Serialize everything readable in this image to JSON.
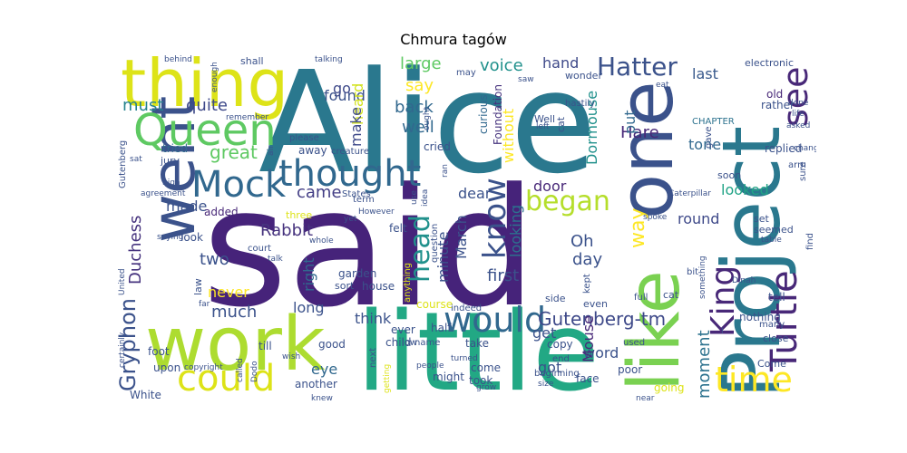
{
  "title": "Chmura tagów",
  "palette": {
    "background": "#ffffff",
    "dark_purple": "#46237a",
    "blue": "#3b528b",
    "teal": "#21918c",
    "green": "#5ec962",
    "yellow": "#dde318"
  },
  "words": [
    {
      "text": "said",
      "color": "#46237a"
    },
    {
      "text": "Alice",
      "color": "#2a788e"
    },
    {
      "text": "little",
      "color": "#22a884"
    },
    {
      "text": "work",
      "color": "#addc30"
    },
    {
      "text": "thing",
      "color": "#dde318"
    },
    {
      "text": "went",
      "color": "#3b528b"
    },
    {
      "text": "one",
      "color": "#3b528b"
    },
    {
      "text": "like",
      "color": "#7ad151"
    },
    {
      "text": "Project",
      "color": "#2a788e"
    },
    {
      "text": "Queen",
      "color": "#5ec962"
    },
    {
      "text": "thought",
      "color": "#31688e"
    },
    {
      "text": "Mock",
      "color": "#31688e"
    },
    {
      "text": "could",
      "color": "#dde318"
    },
    {
      "text": "would",
      "color": "#31688e"
    },
    {
      "text": "time",
      "color": "#fde725"
    },
    {
      "text": "Turtle",
      "color": "#482878"
    },
    {
      "text": "see",
      "color": "#482878"
    },
    {
      "text": "King",
      "color": "#482878"
    },
    {
      "text": "know",
      "color": "#3b528b"
    },
    {
      "text": "head",
      "color": "#21918c"
    },
    {
      "text": "began",
      "color": "#b5de2b"
    },
    {
      "text": "Hatter",
      "color": "#3b528b"
    },
    {
      "text": "Gryphon",
      "color": "#3b528b"
    },
    {
      "text": "Duchess",
      "color": "#46337e"
    },
    {
      "text": "Gutenberg-tm",
      "color": "#3e4989"
    },
    {
      "text": "moment",
      "color": "#2c728e"
    },
    {
      "text": "voice",
      "color": "#21918c"
    },
    {
      "text": "quite",
      "color": "#3e4989"
    },
    {
      "text": "must",
      "color": "#26828e"
    },
    {
      "text": "great",
      "color": "#5ec962"
    },
    {
      "text": "much",
      "color": "#3b528b"
    },
    {
      "text": "two",
      "color": "#3b528b"
    },
    {
      "text": "never",
      "color": "#fde725"
    },
    {
      "text": "made",
      "color": "#3b528b"
    },
    {
      "text": "Rabbit",
      "color": "#46337e"
    },
    {
      "text": "came",
      "color": "#433e85"
    },
    {
      "text": "found",
      "color": "#3b528b"
    },
    {
      "text": "go",
      "color": "#3e4989"
    },
    {
      "text": "heard",
      "color": "#d2e21b"
    },
    {
      "text": "large",
      "color": "#5ec962"
    },
    {
      "text": "say",
      "color": "#fde725"
    },
    {
      "text": "back",
      "color": "#31688e"
    },
    {
      "text": "well",
      "color": "#31688e"
    },
    {
      "text": "make",
      "color": "#3e4989"
    },
    {
      "text": "without",
      "color": "#fde725"
    },
    {
      "text": "hand",
      "color": "#3e4989"
    },
    {
      "text": "last",
      "color": "#38598c"
    },
    {
      "text": "Dormouse",
      "color": "#21918c"
    },
    {
      "text": "Hare",
      "color": "#482878"
    },
    {
      "text": "way",
      "color": "#fde725"
    },
    {
      "text": "put",
      "color": "#31688e"
    },
    {
      "text": "door",
      "color": "#482878"
    },
    {
      "text": "dear",
      "color": "#3b528b"
    },
    {
      "text": "minute",
      "color": "#3b528b"
    },
    {
      "text": "March",
      "color": "#3b528b"
    },
    {
      "text": "looking",
      "color": "#2c728e"
    },
    {
      "text": "Oh",
      "color": "#3b528b"
    },
    {
      "text": "day",
      "color": "#3b528b"
    },
    {
      "text": "first",
      "color": "#3b528b"
    },
    {
      "text": "round",
      "color": "#3e4989"
    },
    {
      "text": "looked",
      "color": "#20a386"
    },
    {
      "text": "tone",
      "color": "#31688e"
    },
    {
      "text": "right",
      "color": "#31688e"
    },
    {
      "text": "long",
      "color": "#3b528b"
    },
    {
      "text": "think",
      "color": "#3b528b"
    },
    {
      "text": "get",
      "color": "#3b528b"
    },
    {
      "text": "word",
      "color": "#3b528b"
    },
    {
      "text": "Mouse",
      "color": "#482878"
    },
    {
      "text": "got",
      "color": "#3b528b"
    },
    {
      "text": "eye",
      "color": "#31688e"
    },
    {
      "text": "first",
      "color": "#3b528b"
    },
    {
      "text": "curious",
      "color": "#31688e"
    },
    {
      "text": "Foundation",
      "color": "#46337e"
    },
    {
      "text": "added",
      "color": "#482878"
    },
    {
      "text": "tried",
      "color": "#31688e"
    },
    {
      "text": "Gutenberg",
      "color": "#3b528b"
    },
    {
      "text": "away",
      "color": "#3b528b"
    },
    {
      "text": "cried",
      "color": "#3b528b"
    },
    {
      "text": "replied",
      "color": "#3b528b"
    },
    {
      "text": "old",
      "color": "#482878"
    },
    {
      "text": "rather",
      "color": "#3b528b"
    },
    {
      "text": "CHAPTER",
      "color": "#2c728e"
    },
    {
      "text": "electronic",
      "color": "#3b528b"
    },
    {
      "text": "wonder",
      "color": "#3b528b"
    },
    {
      "text": "hastily",
      "color": "#3b528b"
    },
    {
      "text": "soon",
      "color": "#3b528b"
    },
    {
      "text": "arm",
      "color": "#3b528b"
    },
    {
      "text": "sure",
      "color": "#3b528b"
    },
    {
      "text": "set",
      "color": "#3b528b"
    },
    {
      "text": "seemed",
      "color": "#3b528b"
    },
    {
      "text": "table",
      "color": "#3b528b"
    },
    {
      "text": "find",
      "color": "#3b528b"
    },
    {
      "text": "tell",
      "color": "#3b528b"
    },
    {
      "text": "nothing",
      "color": "#3b528b"
    },
    {
      "text": "close",
      "color": "#3b528b"
    },
    {
      "text": "many",
      "color": "#3b528b"
    },
    {
      "text": "Come",
      "color": "#3b528b"
    },
    {
      "text": "cat",
      "color": "#3b528b"
    },
    {
      "text": "bit",
      "color": "#3b528b"
    },
    {
      "text": "full",
      "color": "#3b528b"
    },
    {
      "text": "used",
      "color": "#3b528b"
    },
    {
      "text": "going",
      "color": "#dde318"
    },
    {
      "text": "near",
      "color": "#3b528b"
    },
    {
      "text": "poor",
      "color": "#3b528b"
    },
    {
      "text": "face",
      "color": "#3b528b"
    },
    {
      "text": "even",
      "color": "#3b528b"
    },
    {
      "text": "side",
      "color": "#3b528b"
    },
    {
      "text": "copy",
      "color": "#3b528b"
    },
    {
      "text": "course",
      "color": "#dde318"
    },
    {
      "text": "indeed",
      "color": "#3b528b"
    },
    {
      "text": "half",
      "color": "#3b528b"
    },
    {
      "text": "ever",
      "color": "#3b528b"
    },
    {
      "text": "child",
      "color": "#3b528b"
    },
    {
      "text": "low",
      "color": "#3b528b"
    },
    {
      "text": "name",
      "color": "#3b528b"
    },
    {
      "text": "take",
      "color": "#3b528b"
    },
    {
      "text": "come",
      "color": "#3b528b"
    },
    {
      "text": "took",
      "color": "#3b528b"
    },
    {
      "text": "might",
      "color": "#3b528b"
    },
    {
      "text": "next",
      "color": "#3b528b"
    },
    {
      "text": "people",
      "color": "#3b528b"
    },
    {
      "text": "turned",
      "color": "#3b528b"
    },
    {
      "text": "grow",
      "color": "#3b528b"
    },
    {
      "text": "size",
      "color": "#3b528b"
    },
    {
      "text": "another",
      "color": "#3b528b"
    },
    {
      "text": "knew",
      "color": "#3b528b"
    },
    {
      "text": "getting",
      "color": "#dde318"
    },
    {
      "text": "house",
      "color": "#3b528b"
    },
    {
      "text": "good",
      "color": "#3b528b"
    },
    {
      "text": "till",
      "color": "#3b528b"
    },
    {
      "text": "upon",
      "color": "#3b528b"
    },
    {
      "text": "foot",
      "color": "#3b528b"
    },
    {
      "text": "White",
      "color": "#3b528b"
    },
    {
      "text": "copyright",
      "color": "#3b528b"
    },
    {
      "text": "called",
      "color": "#3b528b"
    },
    {
      "text": "Dodo",
      "color": "#3b528b"
    },
    {
      "text": "certainly",
      "color": "#3b528b"
    },
    {
      "text": "United",
      "color": "#3b528b"
    },
    {
      "text": "law",
      "color": "#3b528b"
    },
    {
      "text": "far",
      "color": "#3b528b"
    },
    {
      "text": "look",
      "color": "#3b528b"
    },
    {
      "text": "saying",
      "color": "#3b528b"
    },
    {
      "text": "agreement",
      "color": "#3b528b"
    },
    {
      "text": "high",
      "color": "#3b528b"
    },
    {
      "text": "sat",
      "color": "#3b528b"
    },
    {
      "text": "jury",
      "color": "#3b528b"
    },
    {
      "text": "three",
      "color": "#dde318"
    },
    {
      "text": "court",
      "color": "#3b528b"
    },
    {
      "text": "talk",
      "color": "#3b528b"
    },
    {
      "text": "States",
      "color": "#3b528b"
    },
    {
      "text": "term",
      "color": "#3b528b"
    },
    {
      "text": "yet",
      "color": "#3b528b"
    },
    {
      "text": "whole",
      "color": "#3b528b"
    },
    {
      "text": "garden",
      "color": "#3b528b"
    },
    {
      "text": "sort",
      "color": "#3b528b"
    },
    {
      "text": "anything",
      "color": "#dde318"
    },
    {
      "text": "question",
      "color": "#3b528b"
    },
    {
      "text": "However",
      "color": "#3b528b"
    },
    {
      "text": "felt",
      "color": "#3b528b"
    },
    {
      "text": "use",
      "color": "#3b528b"
    },
    {
      "text": "idea",
      "color": "#3b528b"
    },
    {
      "text": "ran",
      "color": "#3b528b"
    },
    {
      "text": "creature",
      "color": "#3b528b"
    },
    {
      "text": "please",
      "color": "#3b528b"
    },
    {
      "text": "air",
      "color": "#3b528b"
    },
    {
      "text": "shall",
      "color": "#3b528b"
    },
    {
      "text": "enough",
      "color": "#3b528b"
    },
    {
      "text": "behind",
      "color": "#3b528b"
    },
    {
      "text": "remember",
      "color": "#3b528b"
    },
    {
      "text": "talking",
      "color": "#3b528b"
    },
    {
      "text": "may",
      "color": "#3b528b"
    },
    {
      "text": "saw",
      "color": "#3b528b"
    },
    {
      "text": "ought",
      "color": "#3b528b"
    },
    {
      "text": "Well",
      "color": "#3b528b"
    },
    {
      "text": "left",
      "color": "#3b528b"
    },
    {
      "text": "cat",
      "color": "#3b528b"
    },
    {
      "text": "eat",
      "color": "#3b528b"
    },
    {
      "text": "kept",
      "color": "#3b528b"
    },
    {
      "text": "Caterpillar",
      "color": "#3b528b"
    },
    {
      "text": "spoke",
      "color": "#3b528b"
    },
    {
      "text": "done",
      "color": "#3b528b"
    },
    {
      "text": "life",
      "color": "#3b528b"
    },
    {
      "text": "asked",
      "color": "#3b528b"
    },
    {
      "text": "change",
      "color": "#3b528b"
    },
    {
      "text": "gave",
      "color": "#3b528b"
    },
    {
      "text": "Dinah",
      "color": "#3b528b"
    },
    {
      "text": "something",
      "color": "#3b528b"
    },
    {
      "text": "beginning",
      "color": "#3b528b"
    },
    {
      "text": "end",
      "color": "#3b528b"
    },
    {
      "text": "wish",
      "color": "#3b528b"
    },
    {
      "text": "I",
      "color": "#3b528b"
    },
    {
      "text": "very",
      "color": "#3b528b"
    }
  ]
}
